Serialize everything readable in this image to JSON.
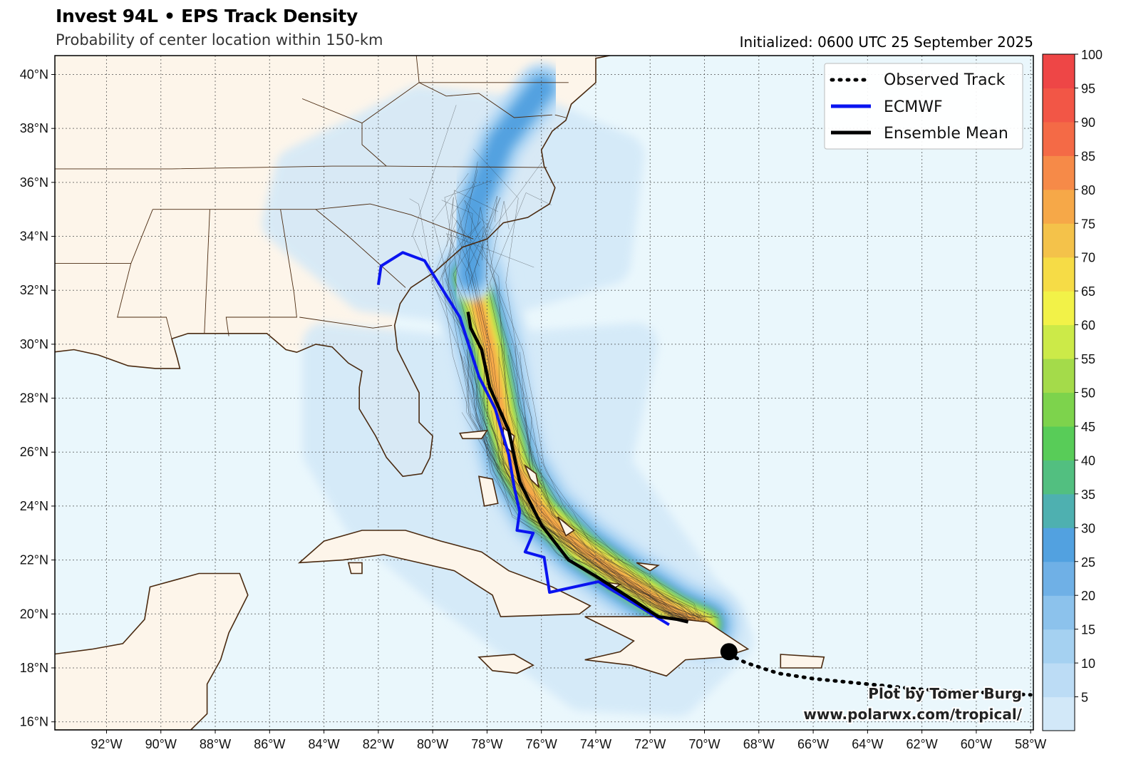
{
  "header": {
    "title": "Invest 94L • EPS Track Density",
    "subtitle": "Probability of center location within 150-km",
    "initialized": "Initialized: 0600 UTC 25 September 2025"
  },
  "map": {
    "lon_range": [
      -93.9,
      -57.9
    ],
    "lat_range": [
      15.7,
      40.7
    ],
    "lat_ticks": [
      "16°N",
      "18°N",
      "20°N",
      "22°N",
      "24°N",
      "26°N",
      "28°N",
      "30°N",
      "32°N",
      "34°N",
      "36°N",
      "38°N",
      "40°N"
    ],
    "lon_ticks": [
      "92°W",
      "90°W",
      "88°W",
      "86°W",
      "84°W",
      "82°W",
      "80°W",
      "78°W",
      "76°W",
      "74°W",
      "72°W",
      "70°W",
      "68°W",
      "66°W",
      "64°W",
      "62°W",
      "60°W",
      "58°W"
    ],
    "land_color": "#fdf5ea",
    "ocean_color": "#eaf7fc",
    "coast_color": "#4a2a10"
  },
  "legend": {
    "items": [
      {
        "label": "Observed Track",
        "color": "#000000",
        "style": "dotted"
      },
      {
        "label": "ECMWF",
        "color": "#0a14f0",
        "style": "solid"
      },
      {
        "label": "Ensemble Mean",
        "color": "#000000",
        "style": "solid"
      }
    ]
  },
  "colorbar": {
    "labels": [
      "5",
      "10",
      "15",
      "20",
      "25",
      "30",
      "35",
      "40",
      "45",
      "50",
      "55",
      "60",
      "65",
      "70",
      "75",
      "80",
      "85",
      "90",
      "95",
      "100"
    ],
    "colors": [
      "#d2e8f8",
      "#bcdcf5",
      "#a5d1f1",
      "#8cc2ec",
      "#6fb0e6",
      "#52a1e0",
      "#4eb0b0",
      "#52bf80",
      "#58cc58",
      "#7dd34c",
      "#a4db4a",
      "#ccea48",
      "#f2f248",
      "#f6dc46",
      "#f4c24a",
      "#f6a848",
      "#f68a48",
      "#f46a46",
      "#f25646",
      "#ee4646"
    ]
  },
  "tracks": {
    "ecmwf": [
      [
        -82.0,
        32.2
      ],
      [
        -81.9,
        32.9
      ],
      [
        -81.1,
        33.4
      ],
      [
        -80.3,
        33.1
      ],
      [
        -79.0,
        31.0
      ],
      [
        -78.3,
        28.8
      ],
      [
        -77.7,
        27.6
      ],
      [
        -77.2,
        25.9
      ],
      [
        -77.0,
        24.7
      ],
      [
        -76.8,
        23.8
      ],
      [
        -76.9,
        23.1
      ],
      [
        -76.3,
        23.0
      ],
      [
        -76.6,
        22.3
      ],
      [
        -75.9,
        22.1
      ],
      [
        -75.7,
        20.8
      ],
      [
        -73.9,
        21.2
      ],
      [
        -71.3,
        19.6
      ]
    ],
    "ensemble_mean": [
      [
        -78.7,
        31.2
      ],
      [
        -78.6,
        30.6
      ],
      [
        -78.2,
        29.8
      ],
      [
        -77.9,
        28.4
      ],
      [
        -77.2,
        26.8
      ],
      [
        -76.8,
        24.9
      ],
      [
        -76.0,
        23.3
      ],
      [
        -75.0,
        22.0
      ],
      [
        -74.0,
        21.4
      ],
      [
        -72.6,
        20.5
      ],
      [
        -71.7,
        19.9
      ],
      [
        -71.0,
        19.8
      ],
      [
        -70.6,
        19.7
      ]
    ],
    "observed": [
      [
        -69.1,
        18.5
      ],
      [
        -68.5,
        18.2
      ],
      [
        -67.3,
        17.8
      ],
      [
        -66.0,
        17.6
      ],
      [
        -64.0,
        17.4
      ],
      [
        -62.0,
        17.2
      ],
      [
        -60.0,
        17.1
      ],
      [
        -58.0,
        17.0
      ]
    ],
    "storm_position": [
      -69.1,
      18.6
    ]
  },
  "density": {
    "spine": [
      [
        -78.6,
        32.5
      ],
      [
        -77.9,
        29.8
      ],
      [
        -77.5,
        27.5
      ],
      [
        -77.0,
        25.5
      ],
      [
        -76.0,
        23.8
      ],
      [
        -74.5,
        22.4
      ],
      [
        -72.8,
        21.2
      ],
      [
        -71.1,
        20.1
      ],
      [
        -70.0,
        19.6
      ]
    ]
  },
  "credit": {
    "line1": "Plot by Tomer Burg",
    "line2": "www.polarwx.com/tropical/"
  }
}
